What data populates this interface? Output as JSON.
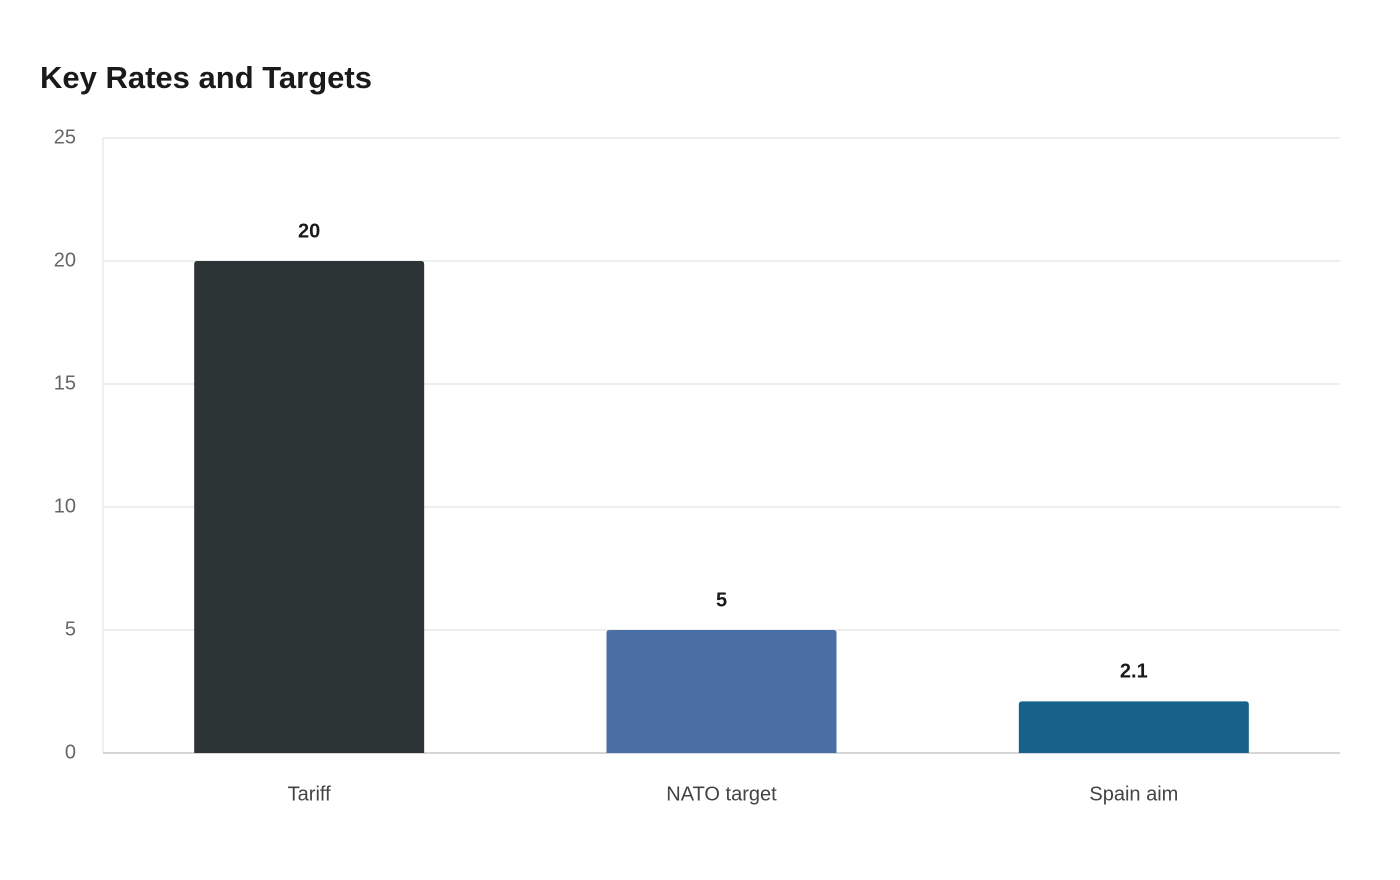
{
  "chart_data": {
    "type": "bar",
    "title": "Key Rates and Targets",
    "categories": [
      "Tariff",
      "NATO target",
      "Spain aim"
    ],
    "values": [
      20,
      5,
      2.1
    ],
    "colors": [
      "#2d3436",
      "#4a6fa5",
      "#17628a"
    ],
    "ylim": [
      0,
      25
    ],
    "yticks": [
      0,
      5,
      10,
      15,
      20,
      25
    ],
    "grid": true
  }
}
